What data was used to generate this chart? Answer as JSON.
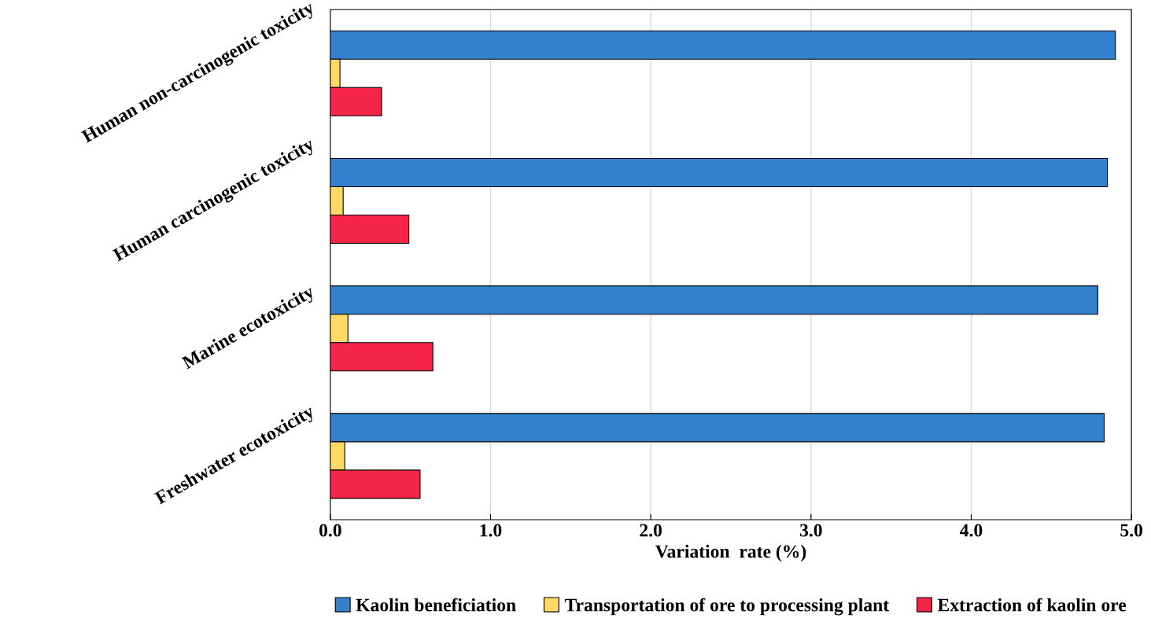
{
  "chart_data": {
    "type": "bar",
    "orientation": "horizontal",
    "xlabel": "Variation  rate (%)",
    "categories": [
      "Human non-carcinogenic toxicity",
      "Human carcinogenic toxicity",
      "Marine ecotoxicity",
      "Freshwater ecotoxicity"
    ],
    "series": [
      {
        "name": "Kaolin beneficiation",
        "color": "#3381cc",
        "values": [
          4.9,
          4.85,
          4.79,
          4.83
        ]
      },
      {
        "name": "Transportation of ore to processing plant",
        "color": "#ffd966",
        "values": [
          0.06,
          0.08,
          0.11,
          0.09
        ]
      },
      {
        "name": "Extraction of kaolin ore",
        "color": "#f52548",
        "values": [
          0.32,
          0.49,
          0.64,
          0.56
        ]
      }
    ],
    "xlim": [
      0,
      5
    ],
    "xticks": [
      {
        "value": 0,
        "label": "0.0"
      },
      {
        "value": 1,
        "label": "1.0"
      },
      {
        "value": 2,
        "label": "2.0"
      },
      {
        "value": 3,
        "label": "3.0"
      },
      {
        "value": 4,
        "label": "4.0"
      },
      {
        "value": 5,
        "label": "5.0"
      }
    ],
    "grid": "x",
    "legend": "bottom"
  }
}
